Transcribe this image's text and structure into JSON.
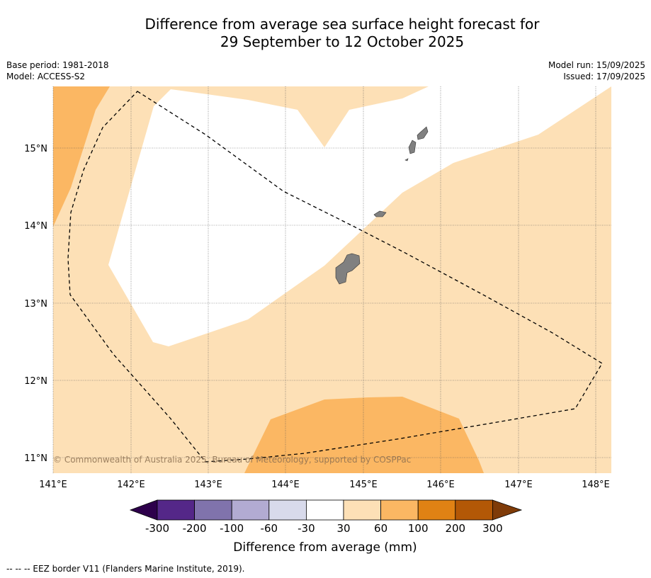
{
  "title": {
    "line1": "Difference from average sea surface height forecast for",
    "line2": "29 September to 12 October 2025"
  },
  "meta": {
    "base_period": "Base period: 1981-2018",
    "model": "Model: ACCESS-S2",
    "model_run": "Model run: 15/09/2025",
    "issued": "Issued: 17/09/2025"
  },
  "map": {
    "lon_ticks": [
      "141°E",
      "142°E",
      "143°E",
      "144°E",
      "145°E",
      "146°E",
      "147°E",
      "148°E"
    ],
    "lat_ticks": [
      "15°N",
      "14°N",
      "13°N",
      "12°N",
      "11°N"
    ],
    "copyright": "© Commonwealth of Australia 2025, Bureau of Meteorology, supported by COSPPac",
    "colors": {
      "land": "#808080",
      "band_30_60": "#fde0b6",
      "band_60_100": "#fbb763",
      "eez_line": "#000000"
    }
  },
  "colorbar": {
    "ticks": [
      "-300",
      "-200",
      "-100",
      "-60",
      "-30",
      "30",
      "60",
      "100",
      "200",
      "300"
    ],
    "colors": [
      "#2d004b",
      "#542788",
      "#8073ac",
      "#b2abd2",
      "#d8daeb",
      "#ffffff",
      "#fde0b6",
      "#fbb763",
      "#e08214",
      "#b35806",
      "#7f3b08"
    ],
    "label": "Difference from average (mm)"
  },
  "footer": "--  --  -- EEZ border V11 (Flanders Marine Institute, 2019)."
}
